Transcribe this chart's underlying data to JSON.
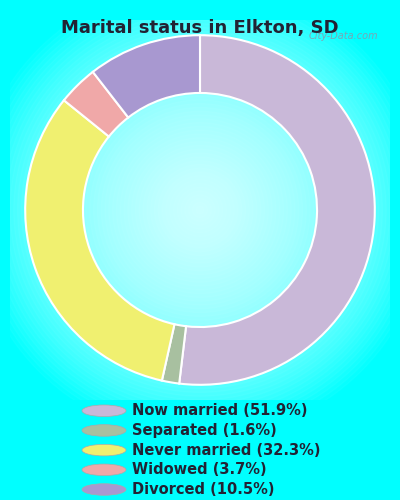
{
  "title": "Marital status in Elkton, SD",
  "title_color": "#222233",
  "bg_color_outer": "#00FFFF",
  "bg_color_chart_corner": "#c8ecd8",
  "bg_color_chart_center": "#e8f8ee",
  "slices": [
    {
      "label": "Now married (51.9%)",
      "value": 51.9,
      "color": "#c9b8d8"
    },
    {
      "label": "Separated (1.6%)",
      "value": 1.6,
      "color": "#a8c0a0"
    },
    {
      "label": "Never married (32.3%)",
      "value": 32.3,
      "color": "#f0f070"
    },
    {
      "label": "Widowed (3.7%)",
      "value": 3.7,
      "color": "#f0a8a8"
    },
    {
      "label": "Divorced (10.5%)",
      "value": 10.5,
      "color": "#a898d0"
    }
  ],
  "legend_dot_colors": [
    "#c9b8d8",
    "#a8c0a0",
    "#f0f070",
    "#f0a8a8",
    "#a898d0"
  ],
  "legend_text_color": "#222233",
  "legend_fontsize": 10.5,
  "title_fontsize": 13,
  "watermark": "City-Data.com"
}
